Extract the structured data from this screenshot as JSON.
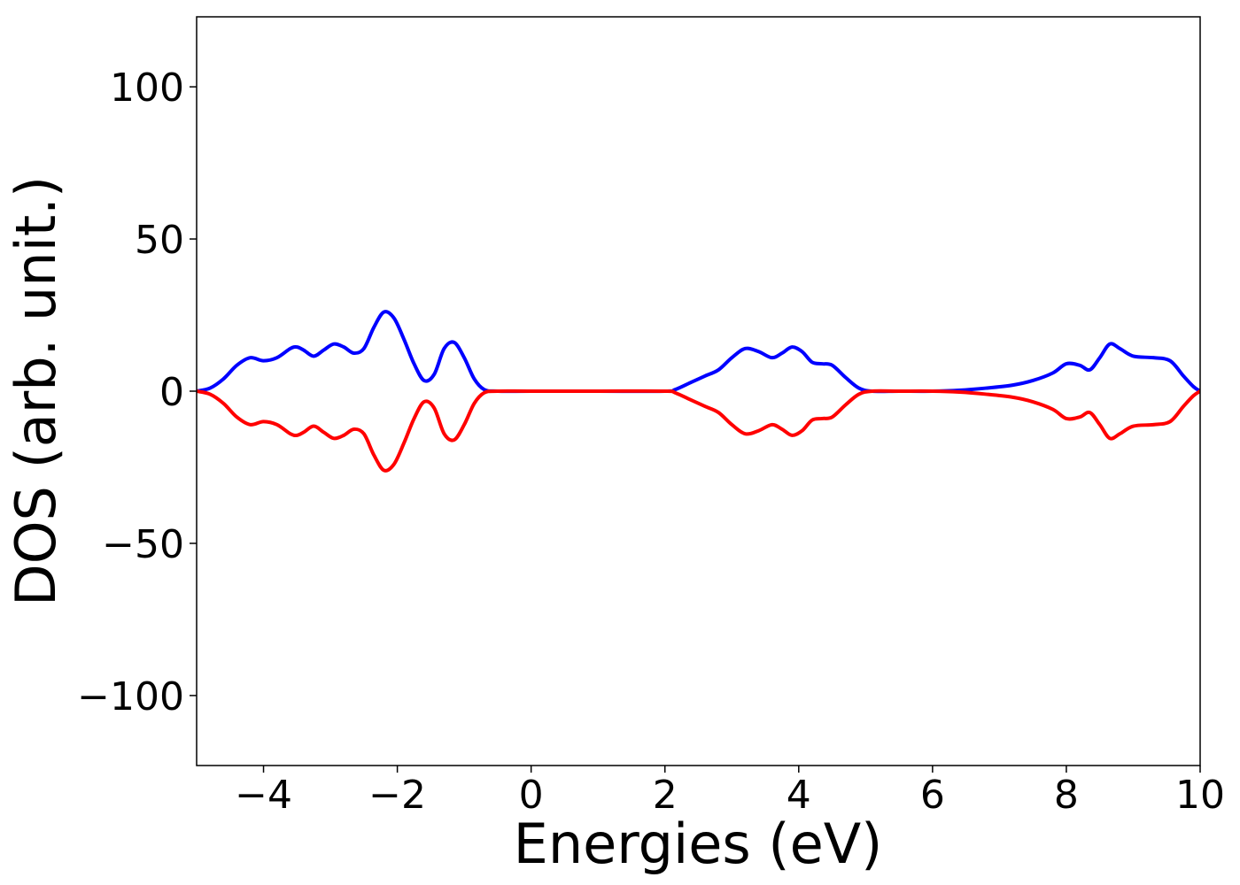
{
  "chart_data": {
    "type": "line",
    "title": "",
    "xlabel": "Energies (eV)",
    "ylabel": "DOS (arb. unit.)",
    "xlim": [
      -5,
      10
    ],
    "ylim": [
      -123,
      123
    ],
    "xticks": [
      -4,
      -2,
      0,
      2,
      4,
      6,
      8,
      10
    ],
    "xtick_labels": [
      "−4",
      "−2",
      "0",
      "2",
      "4",
      "6",
      "8",
      "10"
    ],
    "yticks": [
      -100,
      -50,
      0,
      50,
      100
    ],
    "ytick_labels": [
      "−100",
      "−50",
      "0",
      "50",
      "100"
    ],
    "grid": false,
    "legend": "none",
    "series": [
      {
        "color": "#0000ff",
        "points": [
          [
            -5.0,
            0.0
          ],
          [
            -4.8,
            1.0
          ],
          [
            -4.6,
            4.0
          ],
          [
            -4.4,
            8.5
          ],
          [
            -4.2,
            11.0
          ],
          [
            -4.0,
            10.0
          ],
          [
            -3.8,
            11.0
          ],
          [
            -3.6,
            14.0
          ],
          [
            -3.5,
            14.5
          ],
          [
            -3.4,
            13.5
          ],
          [
            -3.25,
            11.5
          ],
          [
            -3.1,
            13.5
          ],
          [
            -2.95,
            15.5
          ],
          [
            -2.8,
            14.5
          ],
          [
            -2.65,
            12.5
          ],
          [
            -2.5,
            14.0
          ],
          [
            -2.35,
            21.0
          ],
          [
            -2.2,
            26.0
          ],
          [
            -2.05,
            24.0
          ],
          [
            -1.9,
            17.0
          ],
          [
            -1.75,
            9.0
          ],
          [
            -1.6,
            3.5
          ],
          [
            -1.45,
            5.5
          ],
          [
            -1.3,
            14.0
          ],
          [
            -1.15,
            16.0
          ],
          [
            -1.0,
            11.0
          ],
          [
            -0.85,
            4.0
          ],
          [
            -0.7,
            0.5
          ],
          [
            -0.5,
            0.0
          ],
          [
            0.0,
            0.0
          ],
          [
            1.0,
            0.0
          ],
          [
            2.0,
            0.0
          ],
          [
            2.15,
            0.5
          ],
          [
            2.4,
            3.0
          ],
          [
            2.6,
            5.0
          ],
          [
            2.8,
            7.0
          ],
          [
            3.0,
            11.0
          ],
          [
            3.2,
            14.0
          ],
          [
            3.4,
            13.0
          ],
          [
            3.6,
            11.0
          ],
          [
            3.75,
            12.5
          ],
          [
            3.9,
            14.5
          ],
          [
            4.05,
            13.0
          ],
          [
            4.2,
            9.5
          ],
          [
            4.35,
            9.0
          ],
          [
            4.5,
            8.5
          ],
          [
            4.7,
            4.5
          ],
          [
            4.9,
            1.0
          ],
          [
            5.1,
            0.0
          ],
          [
            5.5,
            0.0
          ],
          [
            6.0,
            0.0
          ],
          [
            6.4,
            0.3
          ],
          [
            6.8,
            1.0
          ],
          [
            7.2,
            2.0
          ],
          [
            7.5,
            3.5
          ],
          [
            7.8,
            6.0
          ],
          [
            8.0,
            9.0
          ],
          [
            8.2,
            8.5
          ],
          [
            8.35,
            7.0
          ],
          [
            8.5,
            11.0
          ],
          [
            8.65,
            15.5
          ],
          [
            8.8,
            14.0
          ],
          [
            9.0,
            11.5
          ],
          [
            9.3,
            11.0
          ],
          [
            9.55,
            10.0
          ],
          [
            9.75,
            5.0
          ],
          [
            9.9,
            1.5
          ],
          [
            10.0,
            0.0
          ]
        ]
      },
      {
        "color": "#ff0000",
        "points": [
          [
            -5.0,
            0.0
          ],
          [
            -4.8,
            -1.0
          ],
          [
            -4.6,
            -4.0
          ],
          [
            -4.4,
            -8.5
          ],
          [
            -4.2,
            -11.0
          ],
          [
            -4.0,
            -10.0
          ],
          [
            -3.8,
            -11.0
          ],
          [
            -3.6,
            -14.0
          ],
          [
            -3.5,
            -14.5
          ],
          [
            -3.4,
            -13.5
          ],
          [
            -3.25,
            -11.5
          ],
          [
            -3.1,
            -13.5
          ],
          [
            -2.95,
            -15.5
          ],
          [
            -2.8,
            -14.5
          ],
          [
            -2.65,
            -12.5
          ],
          [
            -2.5,
            -14.0
          ],
          [
            -2.35,
            -21.0
          ],
          [
            -2.2,
            -26.0
          ],
          [
            -2.05,
            -24.0
          ],
          [
            -1.9,
            -17.0
          ],
          [
            -1.75,
            -9.0
          ],
          [
            -1.6,
            -3.5
          ],
          [
            -1.45,
            -5.5
          ],
          [
            -1.3,
            -14.0
          ],
          [
            -1.15,
            -16.0
          ],
          [
            -1.0,
            -11.0
          ],
          [
            -0.85,
            -4.0
          ],
          [
            -0.7,
            -0.5
          ],
          [
            -0.5,
            0.0
          ],
          [
            0.0,
            0.0
          ],
          [
            1.0,
            0.0
          ],
          [
            2.0,
            0.0
          ],
          [
            2.15,
            -0.5
          ],
          [
            2.4,
            -3.0
          ],
          [
            2.6,
            -5.0
          ],
          [
            2.8,
            -7.0
          ],
          [
            3.0,
            -11.0
          ],
          [
            3.2,
            -14.0
          ],
          [
            3.4,
            -13.0
          ],
          [
            3.6,
            -11.0
          ],
          [
            3.75,
            -12.5
          ],
          [
            3.9,
            -14.5
          ],
          [
            4.05,
            -13.0
          ],
          [
            4.2,
            -9.5
          ],
          [
            4.35,
            -9.0
          ],
          [
            4.5,
            -8.5
          ],
          [
            4.7,
            -4.5
          ],
          [
            4.9,
            -1.0
          ],
          [
            5.1,
            0.0
          ],
          [
            5.5,
            0.0
          ],
          [
            6.0,
            0.0
          ],
          [
            6.4,
            -0.3
          ],
          [
            6.8,
            -1.0
          ],
          [
            7.2,
            -2.0
          ],
          [
            7.5,
            -3.5
          ],
          [
            7.8,
            -6.0
          ],
          [
            8.0,
            -9.0
          ],
          [
            8.2,
            -8.5
          ],
          [
            8.35,
            -7.0
          ],
          [
            8.5,
            -11.0
          ],
          [
            8.65,
            -15.5
          ],
          [
            8.8,
            -14.0
          ],
          [
            9.0,
            -11.5
          ],
          [
            9.3,
            -11.0
          ],
          [
            9.55,
            -10.0
          ],
          [
            9.75,
            -5.0
          ],
          [
            9.9,
            -1.5
          ],
          [
            10.0,
            0.0
          ]
        ]
      }
    ]
  }
}
